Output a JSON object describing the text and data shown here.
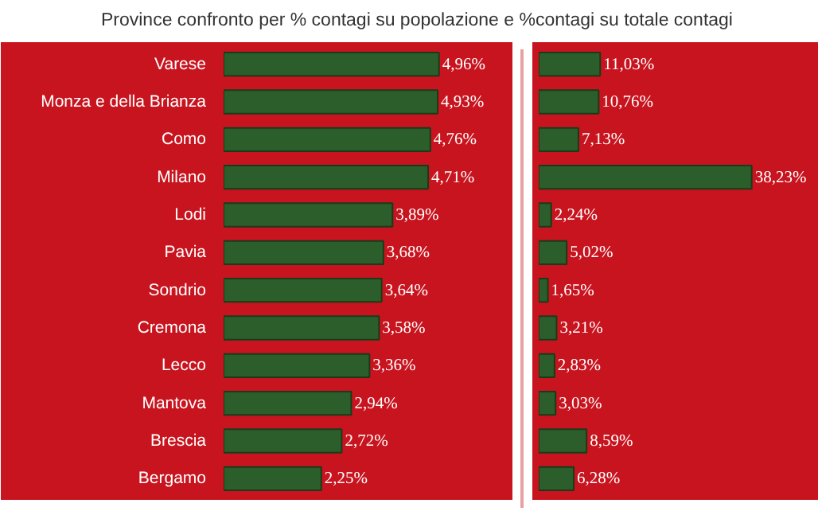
{
  "chart_data": [
    {
      "type": "bar",
      "orientation": "horizontal",
      "title": "Province confronto per  % contagi su popolazione e %contagi su totale contagi",
      "tick_labels": "y",
      "color": "#2b5e2b",
      "categories": [
        "Varese",
        "Monza e della Brianza",
        "Como",
        "Milano",
        "Lodi",
        "Pavia",
        "Sondrio",
        "Cremona",
        "Lecco",
        "Mantova",
        "Brescia",
        "Bergamo"
      ],
      "values": [
        4.96,
        4.93,
        4.76,
        4.71,
        3.89,
        3.68,
        3.64,
        3.58,
        3.36,
        2.94,
        2.72,
        2.25
      ],
      "value_labels": [
        "4,96%",
        "4,93%",
        "4,76%",
        "4,71%",
        "3,89%",
        "3,68%",
        "3,64%",
        "3,58%",
        "3,36%",
        "2,94%",
        "2,72%",
        "2,25%"
      ]
    },
    {
      "type": "bar",
      "orientation": "horizontal",
      "tick_labels": false,
      "color": "#2b5e2b",
      "categories": [
        null,
        null,
        null,
        null,
        null,
        null,
        null,
        null,
        null,
        null,
        null,
        null
      ],
      "values": [
        11.03,
        10.76,
        7.13,
        38.23,
        2.24,
        5.02,
        1.65,
        3.21,
        2.83,
        3.03,
        8.59,
        6.28
      ],
      "value_labels": [
        "11,03%",
        "10,76%",
        "7,13%",
        "38,23%",
        "2,24%",
        "5,02%",
        "1,65%",
        "3,21%",
        "2,83%",
        "3,03%",
        "8,59%",
        "6,28%"
      ]
    }
  ]
}
